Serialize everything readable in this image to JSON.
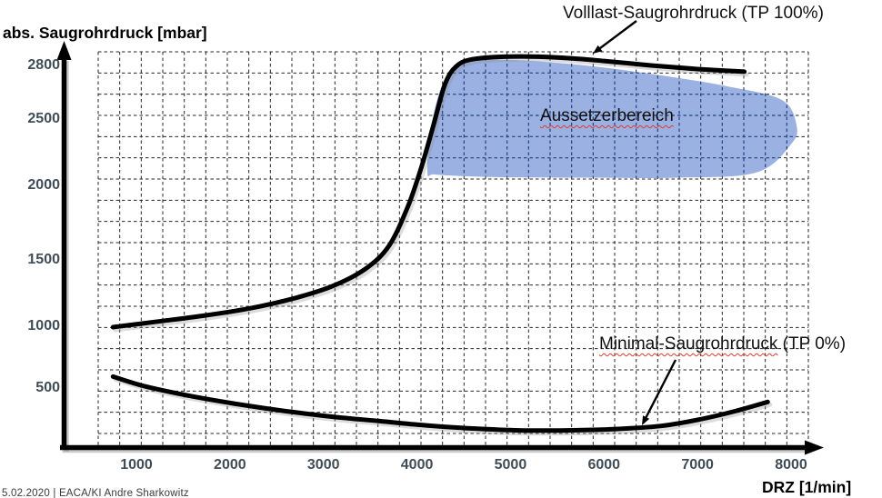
{
  "axis": {
    "y_title": "abs. Saugrohrdruck [mbar]",
    "x_title": "DRZ [1/min]"
  },
  "annotations": {
    "volllast_label": "Volllast-Saugrohrdruck (TP 100%)",
    "aussetzer_label": "Aussetzerbereich",
    "minimal_label_main": "Minimal-Saugrohrdruck",
    "minimal_label_suffix": " (TP 0%)"
  },
  "footer": {
    "text": "5.02.2020 | EACA/KI Andre Sharkowitz"
  },
  "colors": {
    "curve": "#000000",
    "curve_shadow": "#8a8a8a",
    "grid": "#1a1a1a",
    "region_fill": "#9bb1e2",
    "region_grid": "#24407c",
    "tick_text": "#414d56",
    "squiggle": "#e03a2f"
  },
  "chart_data": {
    "type": "line",
    "title": "",
    "xlabel": "DRZ [1/min]",
    "ylabel": "abs. Saugrohrdruck [mbar]",
    "x_ticks": [
      1000,
      2000,
      3000,
      4000,
      5000,
      6000,
      7000,
      8000
    ],
    "y_ticks": [
      500,
      1000,
      1500,
      2000,
      2500,
      2800
    ],
    "xlim": [
      550,
      8650
    ],
    "ylim": [
      0,
      2960
    ],
    "grid": "dashed",
    "legend_position": "none",
    "series": [
      {
        "name": "Volllast-Saugrohrdruck (TP 100%)",
        "points": [
          [
            750,
            1000
          ],
          [
            1200,
            1040
          ],
          [
            1700,
            1085
          ],
          [
            2200,
            1140
          ],
          [
            2700,
            1220
          ],
          [
            3100,
            1310
          ],
          [
            3450,
            1440
          ],
          [
            3700,
            1600
          ],
          [
            3900,
            1860
          ],
          [
            4050,
            2150
          ],
          [
            4180,
            2470
          ],
          [
            4300,
            2700
          ],
          [
            4420,
            2800
          ],
          [
            4600,
            2840
          ],
          [
            5000,
            2855
          ],
          [
            5500,
            2850
          ],
          [
            6000,
            2830
          ],
          [
            6500,
            2805
          ],
          [
            7000,
            2785
          ],
          [
            7500,
            2770
          ]
        ]
      },
      {
        "name": "Minimal-Saugrohrdruck (TP 0%)",
        "points": [
          [
            750,
            600
          ],
          [
            1100,
            520
          ],
          [
            1600,
            440
          ],
          [
            2100,
            375
          ],
          [
            2600,
            320
          ],
          [
            3100,
            275
          ],
          [
            3600,
            240
          ],
          [
            4100,
            205
          ],
          [
            4600,
            180
          ],
          [
            5100,
            165
          ],
          [
            5600,
            165
          ],
          [
            6100,
            175
          ],
          [
            6600,
            200
          ],
          [
            7000,
            250
          ],
          [
            7400,
            320
          ],
          [
            7750,
            395
          ]
        ]
      }
    ],
    "region": {
      "label": "Aussetzerbereich",
      "rpm_range": [
        4100,
        8050
      ],
      "mbar_range": [
        2060,
        2840
      ],
      "outline": [
        [
          4111,
          2105
        ],
        [
          4150,
          2450
        ],
        [
          4290,
          2720
        ],
        [
          4500,
          2820
        ],
        [
          4986,
          2836
        ],
        [
          5800,
          2805
        ],
        [
          6600,
          2750
        ],
        [
          7319,
          2688
        ],
        [
          7902,
          2612
        ],
        [
          8058,
          2459
        ],
        [
          8000,
          2317
        ],
        [
          7631,
          2105
        ],
        [
          6800,
          2065
        ],
        [
          5800,
          2065
        ],
        [
          4986,
          2068
        ],
        [
          4450,
          2078
        ],
        [
          4180,
          2090
        ]
      ]
    }
  }
}
